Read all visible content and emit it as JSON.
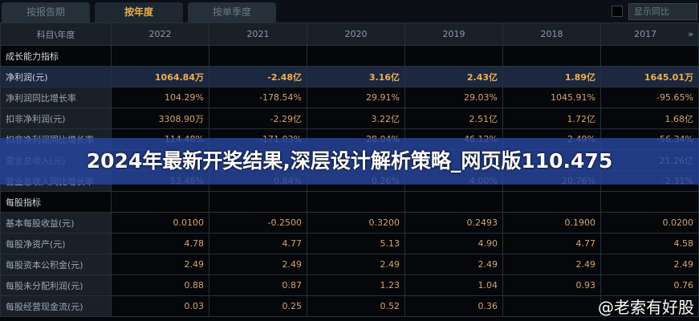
{
  "tabs": [
    "按报告期",
    "按年度",
    "按单季度"
  ],
  "active_tab": 1,
  "yoy_toggle": {
    "label": "显示同比",
    "checked": false
  },
  "header": {
    "label": "科目\\年度",
    "years": [
      "2022",
      "2021",
      "2020",
      "2019",
      "2018",
      "2017"
    ],
    "more_icon": "double-chevron-right-icon"
  },
  "rows": [
    {
      "label": "成长能力指标",
      "type": "section",
      "values": [
        "",
        "",
        "",
        "",
        "",
        ""
      ]
    },
    {
      "label": "净利润(元)",
      "type": "highlight",
      "values": [
        "1064.84万",
        "-2.48亿",
        "3.16亿",
        "2.43亿",
        "1.89亿",
        "1645.01万"
      ]
    },
    {
      "label": "净利润同比增长率",
      "values": [
        "104.29%",
        "-178.54%",
        "29.91%",
        "29.03%",
        "1045.91%",
        "-95.65%"
      ]
    },
    {
      "label": "扣非净利润(元)",
      "values": [
        "3308.90万",
        "-2.29亿",
        "3.22亿",
        "2.51亿",
        "1.72亿",
        "1.68亿"
      ]
    },
    {
      "label": "扣非净利润同比增长率",
      "values": [
        "114.48%",
        "-171.03%",
        "28.04%",
        "46.12%",
        "2.49%",
        "-56.34%"
      ]
    },
    {
      "label": "营业总收入(元)",
      "values": [
        "",
        "",
        "",
        "",
        "",
        "21.26亿"
      ]
    },
    {
      "label": "营业总收入同比增长率",
      "values": [
        "53.46%",
        "0.84%",
        "0.26%",
        "4.00%",
        "20.76%",
        "-2.31%"
      ]
    },
    {
      "label": "每股指标",
      "type": "section",
      "values": [
        "",
        "",
        "",
        "",
        "",
        ""
      ]
    },
    {
      "label": "基本每股收益(元)",
      "values": [
        "0.0100",
        "-0.2500",
        "0.3200",
        "0.2493",
        "0.1900",
        "0.0200"
      ]
    },
    {
      "label": "每股净资产(元)",
      "values": [
        "4.78",
        "4.77",
        "5.13",
        "4.90",
        "4.77",
        "4.58"
      ]
    },
    {
      "label": "每股资本公积金(元)",
      "values": [
        "2.49",
        "2.49",
        "2.49",
        "2.49",
        "2.49",
        "2.49"
      ]
    },
    {
      "label": "每股未分配利润(元)",
      "values": [
        "0.88",
        "0.87",
        "1.23",
        "1.04",
        "0.93",
        "0.76"
      ]
    },
    {
      "label": "每股经营现金流(元)",
      "values": [
        "0.03",
        "0.25",
        "0.52",
        "0.36",
        "",
        ""
      ]
    }
  ],
  "banner": "2024年最新开奖结果,深层设计解析策略_网页版110.475",
  "watermark": "@老索有好股"
}
